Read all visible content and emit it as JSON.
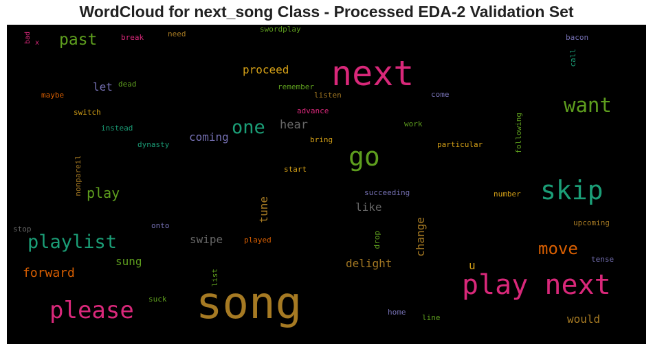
{
  "title": "WordCloud for next_song Class - Processed EDA-2 Validation Set",
  "words": [
    {
      "text": "song",
      "color": "#a67a23"
    },
    {
      "text": "next",
      "color": "#d9287a"
    },
    {
      "text": "play next",
      "color": "#d9287a"
    },
    {
      "text": "go",
      "color": "#5e9e1e"
    },
    {
      "text": "skip",
      "color": "#1b9e77"
    },
    {
      "text": "please",
      "color": "#d9287a"
    },
    {
      "text": "playlist",
      "color": "#1b9e77"
    },
    {
      "text": "want",
      "color": "#5e9e1e"
    },
    {
      "text": "one",
      "color": "#1b9e77"
    },
    {
      "text": "move",
      "color": "#d95f02"
    },
    {
      "text": "past",
      "color": "#5e9e1e"
    },
    {
      "text": "play",
      "color": "#5e9e1e"
    },
    {
      "text": "forward",
      "color": "#d95f02"
    },
    {
      "text": "hear",
      "color": "#666666"
    },
    {
      "text": "coming",
      "color": "#7570b3"
    },
    {
      "text": "proceed",
      "color": "#d4a017"
    },
    {
      "text": "swipe",
      "color": "#666666"
    },
    {
      "text": "sung",
      "color": "#5e9e1e"
    },
    {
      "text": "delight",
      "color": "#a67a23"
    },
    {
      "text": "would",
      "color": "#a67a23"
    },
    {
      "text": "like",
      "color": "#666666"
    },
    {
      "text": "let",
      "color": "#7570b3"
    },
    {
      "text": "tune",
      "color": "#a67a23"
    },
    {
      "text": "change",
      "color": "#a67a23"
    },
    {
      "text": "u",
      "color": "#d4a017"
    },
    {
      "text": "swordplay",
      "color": "#5e9e1e"
    },
    {
      "text": "break",
      "color": "#d9287a"
    },
    {
      "text": "need",
      "color": "#a67a23"
    },
    {
      "text": "bacon",
      "color": "#7570b3"
    },
    {
      "text": "call",
      "color": "#1b9e77"
    },
    {
      "text": "bad",
      "color": "#d9287a"
    },
    {
      "text": "x",
      "color": "#d9287a"
    },
    {
      "text": "dead",
      "color": "#5e9e1e"
    },
    {
      "text": "maybe",
      "color": "#d95f02"
    },
    {
      "text": "remember",
      "color": "#5e9e1e"
    },
    {
      "text": "listen",
      "color": "#a67a23"
    },
    {
      "text": "come",
      "color": "#7570b3"
    },
    {
      "text": "advance",
      "color": "#d9287a"
    },
    {
      "text": "switch",
      "color": "#d4a017"
    },
    {
      "text": "work",
      "color": "#5e9e1e"
    },
    {
      "text": "instead",
      "color": "#1b9e77"
    },
    {
      "text": "bring",
      "color": "#d4a017"
    },
    {
      "text": "following",
      "color": "#5e9e1e"
    },
    {
      "text": "dynasty",
      "color": "#1b9e77"
    },
    {
      "text": "particular",
      "color": "#d4a017"
    },
    {
      "text": "start",
      "color": "#d4a017"
    },
    {
      "text": "nonpareil",
      "color": "#a67a23"
    },
    {
      "text": "succeeding",
      "color": "#7570b3"
    },
    {
      "text": "number",
      "color": "#d4a017"
    },
    {
      "text": "stop",
      "color": "#666666"
    },
    {
      "text": "onto",
      "color": "#7570b3"
    },
    {
      "text": "played",
      "color": "#d95f02"
    },
    {
      "text": "drop",
      "color": "#5e9e1e"
    },
    {
      "text": "upcoming",
      "color": "#a67a23"
    },
    {
      "text": "tense",
      "color": "#7570b3"
    },
    {
      "text": "list",
      "color": "#5e9e1e"
    },
    {
      "text": "suck",
      "color": "#5e9e1e"
    },
    {
      "text": "home",
      "color": "#7570b3"
    },
    {
      "text": "line",
      "color": "#5e9e1e"
    }
  ]
}
